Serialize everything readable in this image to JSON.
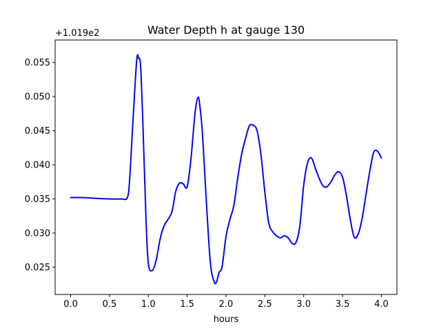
{
  "chart_data": {
    "type": "line",
    "title": "Water Depth h at gauge 130",
    "xlabel": "hours",
    "ylabel": "",
    "y_offset_label": "+1.019e2",
    "xlim": [
      -0.2,
      4.2
    ],
    "ylim": [
      0.021,
      0.0583
    ],
    "x_ticks": [
      0.0,
      0.5,
      1.0,
      1.5,
      2.0,
      2.5,
      3.0,
      3.5,
      4.0
    ],
    "x_tick_labels": [
      "0.0",
      "0.5",
      "1.0",
      "1.5",
      "2.0",
      "2.5",
      "3.0",
      "3.5",
      "4.0"
    ],
    "y_ticks": [
      0.025,
      0.03,
      0.035,
      0.04,
      0.045,
      0.05,
      0.055
    ],
    "y_tick_labels": [
      "0.025",
      "0.030",
      "0.035",
      "0.040",
      "0.045",
      "0.050",
      "0.055"
    ],
    "grid": false,
    "series": [
      {
        "color": "#0000ff",
        "x": [
          0.0,
          0.15,
          0.3,
          0.5,
          0.65,
          0.73,
          0.76,
          0.8,
          0.85,
          0.875,
          0.9,
          0.93,
          0.97,
          1.0,
          1.05,
          1.1,
          1.15,
          1.2,
          1.3,
          1.35,
          1.4,
          1.45,
          1.5,
          1.55,
          1.6,
          1.64,
          1.67,
          1.7,
          1.75,
          1.8,
          1.85,
          1.88,
          1.91,
          1.95,
          2.0,
          2.05,
          2.1,
          2.15,
          2.2,
          2.25,
          2.3,
          2.35,
          2.4,
          2.45,
          2.5,
          2.55,
          2.6,
          2.65,
          2.7,
          2.75,
          2.8,
          2.85,
          2.9,
          2.95,
          3.0,
          3.05,
          3.1,
          3.15,
          3.2,
          3.25,
          3.3,
          3.35,
          3.4,
          3.45,
          3.5,
          3.55,
          3.6,
          3.65,
          3.7,
          3.75,
          3.8,
          3.85,
          3.9,
          3.95,
          4.0
        ],
        "y": [
          0.0352,
          0.0352,
          0.0351,
          0.035,
          0.035,
          0.0352,
          0.038,
          0.046,
          0.0553,
          0.0556,
          0.0545,
          0.046,
          0.032,
          0.0255,
          0.0245,
          0.026,
          0.029,
          0.031,
          0.033,
          0.036,
          0.0373,
          0.0372,
          0.0368,
          0.041,
          0.0475,
          0.0499,
          0.048,
          0.044,
          0.034,
          0.0255,
          0.0228,
          0.0229,
          0.0242,
          0.0251,
          0.0295,
          0.032,
          0.034,
          0.038,
          0.0415,
          0.0438,
          0.0457,
          0.0458,
          0.045,
          0.0415,
          0.036,
          0.0315,
          0.0302,
          0.0296,
          0.0293,
          0.0296,
          0.0293,
          0.0285,
          0.0286,
          0.031,
          0.037,
          0.0403,
          0.041,
          0.0395,
          0.038,
          0.0369,
          0.0368,
          0.0375,
          0.0385,
          0.039,
          0.0382,
          0.0355,
          0.032,
          0.0294,
          0.0298,
          0.032,
          0.0355,
          0.039,
          0.0418,
          0.042,
          0.041
        ]
      }
    ]
  }
}
